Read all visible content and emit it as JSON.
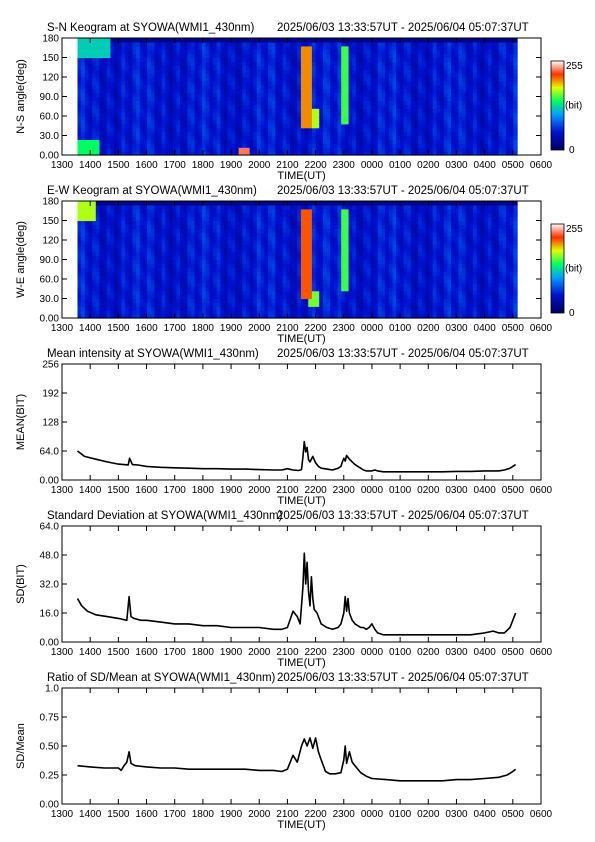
{
  "chart_data": [
    {
      "type": "heatmap",
      "title": "S-N Keogram at SYOWA(WMI1_430nm)",
      "time_range": "2025/06/03 13:33:57UT - 2025/06/04 05:07:37UT",
      "xlabel": "TIME(UT)",
      "ylabel": "N-S angle(deg)",
      "x_ticks": [
        "1300",
        "1400",
        "1500",
        "1600",
        "1700",
        "1800",
        "1900",
        "2000",
        "2100",
        "2200",
        "2300",
        "0000",
        "0100",
        "0200",
        "0300",
        "0400",
        "0500",
        "0600"
      ],
      "y_ticks": [
        "0.00",
        "30.0",
        "60.0",
        "90.0",
        "120",
        "150",
        "180"
      ],
      "ylim": [
        0,
        180
      ],
      "colorbar": {
        "min": "0",
        "max": "255",
        "unit": "(bit)"
      },
      "features": [
        {
          "x": [
            21.55,
            21.75
          ],
          "y": [
            40,
            170
          ],
          "level": 200
        },
        {
          "x": [
            21.75,
            22.05
          ],
          "y": [
            40,
            70
          ],
          "level": 170
        },
        {
          "x": [
            22.95,
            23.1
          ],
          "y": [
            50,
            170
          ],
          "level": 150
        },
        {
          "x": [
            19.3,
            19.6
          ],
          "y": [
            0,
            12
          ],
          "level": 230
        },
        {
          "x": [
            13.6,
            14.3
          ],
          "y": [
            0,
            25
          ],
          "level": 140
        },
        {
          "x": [
            13.6,
            14.6
          ],
          "y": [
            150,
            180
          ],
          "level": 120
        }
      ]
    },
    {
      "type": "heatmap",
      "title": "E-W Keogram at SYOWA(WMI1_430nm)",
      "time_range": "2025/06/03 13:33:57UT - 2025/06/04 05:07:37UT",
      "xlabel": "TIME(UT)",
      "ylabel": "W-E angle(deg)",
      "x_ticks": [
        "1300",
        "1400",
        "1500",
        "1600",
        "1700",
        "1800",
        "1900",
        "2000",
        "2100",
        "2200",
        "2300",
        "0000",
        "0100",
        "0200",
        "0300",
        "0400",
        "0500",
        "0600"
      ],
      "y_ticks": [
        "0.00",
        "30.0",
        "60.0",
        "90.0",
        "120",
        "150",
        "180"
      ],
      "ylim": [
        0,
        180
      ],
      "colorbar": {
        "min": "0",
        "max": "255",
        "unit": "(bit)"
      },
      "features": [
        {
          "x": [
            21.55,
            21.8
          ],
          "y": [
            30,
            170
          ],
          "level": 210
        },
        {
          "x": [
            21.8,
            22.1
          ],
          "y": [
            20,
            40
          ],
          "level": 160
        },
        {
          "x": [
            22.95,
            23.15
          ],
          "y": [
            40,
            170
          ],
          "level": 150
        },
        {
          "x": [
            13.6,
            14.2
          ],
          "y": [
            150,
            180
          ],
          "level": 170
        }
      ]
    },
    {
      "type": "line",
      "title": "Mean intensity at SYOWA(WMI1_430nm)",
      "time_range": "2025/06/03 13:33:57UT - 2025/06/04 05:07:37UT",
      "xlabel": "TIME(UT)",
      "ylabel": "MEAN(BIT)",
      "x_ticks": [
        "1300",
        "1400",
        "1500",
        "1600",
        "1700",
        "1800",
        "1900",
        "2000",
        "2100",
        "2200",
        "2300",
        "0000",
        "0100",
        "0200",
        "0300",
        "0400",
        "0500",
        "0600"
      ],
      "y_ticks": [
        "0.00",
        "64.0",
        "128",
        "192",
        "256"
      ],
      "ylim": [
        0,
        256
      ],
      "series": [
        {
          "x": [
            13.55,
            13.8,
            14.2,
            14.6,
            15.0,
            15.35,
            15.4,
            15.5,
            15.7,
            16.0,
            16.5,
            17.0,
            17.5,
            18.0,
            18.5,
            19.0,
            19.5,
            20.0,
            20.5,
            20.8,
            21.0,
            21.2,
            21.4,
            21.5,
            21.55,
            21.6,
            21.65,
            21.7,
            21.75,
            21.8,
            21.9,
            22.0,
            22.1,
            22.2,
            22.4,
            22.6,
            22.8,
            22.9,
            22.95,
            23.0,
            23.05,
            23.1,
            23.2,
            23.3,
            23.4,
            23.5,
            23.6,
            23.7,
            23.8,
            23.9,
            24.0,
            24.1,
            24.2,
            24.4,
            24.6,
            25.0,
            25.5,
            26.0,
            26.5,
            27.0,
            27.5,
            28.0,
            28.5,
            28.7,
            28.9,
            29.0,
            29.1
          ],
          "values": [
            64,
            52,
            46,
            40,
            35,
            33,
            48,
            34,
            33,
            30,
            28,
            27,
            26,
            25,
            25,
            24,
            24,
            23,
            22,
            22,
            25,
            22,
            21,
            23,
            50,
            85,
            62,
            72,
            45,
            40,
            52,
            38,
            30,
            26,
            24,
            22,
            26,
            30,
            40,
            48,
            42,
            54,
            46,
            40,
            34,
            30,
            26,
            22,
            20,
            20,
            20,
            22,
            20,
            18,
            18,
            18,
            18,
            18,
            18,
            19,
            19,
            20,
            20,
            22,
            26,
            30,
            34
          ]
        }
      ]
    },
    {
      "type": "line",
      "title": "Standard Deviation at SYOWA(WMI1_430nm)",
      "time_range": "2025/06/03 13:33:57UT - 2025/06/04 05:07:37UT",
      "xlabel": "TIME(UT)",
      "ylabel": "SD(BIT)",
      "x_ticks": [
        "1300",
        "1400",
        "1500",
        "1600",
        "1700",
        "1800",
        "1900",
        "2000",
        "2100",
        "2200",
        "2300",
        "0000",
        "0100",
        "0200",
        "0300",
        "0400",
        "0500",
        "0600"
      ],
      "y_ticks": [
        "0.00",
        "16.0",
        "32.0",
        "48.0",
        "64.0"
      ],
      "ylim": [
        0,
        64
      ],
      "series": [
        {
          "x": [
            13.55,
            13.7,
            13.9,
            14.2,
            14.6,
            15.0,
            15.3,
            15.38,
            15.45,
            15.55,
            15.8,
            16.0,
            16.5,
            17.0,
            17.5,
            18.0,
            18.5,
            19.0,
            19.5,
            20.0,
            20.5,
            20.8,
            21.0,
            21.2,
            21.35,
            21.45,
            21.55,
            21.6,
            21.65,
            21.7,
            21.75,
            21.8,
            21.85,
            21.9,
            21.95,
            22.05,
            22.2,
            22.4,
            22.6,
            22.8,
            22.9,
            23.0,
            23.05,
            23.1,
            23.15,
            23.2,
            23.3,
            23.4,
            23.5,
            23.6,
            23.7,
            23.8,
            23.9,
            24.0,
            24.1,
            24.2,
            24.4,
            25.0,
            25.5,
            26.0,
            26.5,
            27.0,
            27.5,
            28.0,
            28.3,
            28.5,
            28.7,
            28.9,
            29.0,
            29.1
          ],
          "values": [
            24,
            20,
            17,
            15,
            14,
            13,
            12,
            25,
            14,
            13,
            12,
            12,
            11,
            10,
            10,
            9,
            9,
            8,
            8,
            8,
            7,
            7,
            8,
            17,
            14,
            10,
            30,
            49,
            32,
            44,
            28,
            20,
            36,
            24,
            18,
            16,
            10,
            8,
            7,
            8,
            10,
            16,
            25,
            17,
            24,
            16,
            12,
            10,
            9,
            8,
            8,
            7,
            8,
            10,
            7,
            5,
            4,
            4,
            4,
            4,
            4,
            4,
            4,
            5,
            6,
            5,
            5,
            8,
            12,
            16
          ]
        }
      ]
    },
    {
      "type": "line",
      "title": "Ratio of SD/Mean at SYOWA(WMI1_430nm)",
      "time_range": "2025/06/03 13:33:57UT - 2025/06/04 05:07:37UT",
      "xlabel": "TIME(UT)",
      "ylabel": "SD/Mean",
      "x_ticks": [
        "1300",
        "1400",
        "1500",
        "1600",
        "1700",
        "1800",
        "1900",
        "2000",
        "2100",
        "2200",
        "2300",
        "0000",
        "0100",
        "0200",
        "0300",
        "0400",
        "0500",
        "0600"
      ],
      "y_ticks": [
        "0.00",
        "0.25",
        "0.50",
        "0.75",
        "1.0"
      ],
      "ylim": [
        0,
        1
      ],
      "series": [
        {
          "x": [
            13.55,
            14.0,
            14.5,
            15.0,
            15.1,
            15.2,
            15.3,
            15.38,
            15.45,
            15.6,
            16.0,
            16.5,
            17.0,
            17.5,
            18.0,
            18.5,
            19.0,
            19.5,
            20.0,
            20.5,
            20.8,
            21.0,
            21.2,
            21.35,
            21.5,
            21.6,
            21.7,
            21.8,
            21.9,
            22.0,
            22.1,
            22.2,
            22.35,
            22.5,
            22.7,
            22.9,
            23.0,
            23.05,
            23.1,
            23.2,
            23.3,
            23.4,
            23.5,
            23.6,
            23.8,
            24.0,
            24.5,
            25.0,
            25.5,
            26.0,
            26.5,
            27.0,
            27.5,
            28.0,
            28.5,
            28.8,
            29.0,
            29.1
          ],
          "values": [
            0.33,
            0.32,
            0.31,
            0.31,
            0.29,
            0.33,
            0.36,
            0.45,
            0.35,
            0.33,
            0.32,
            0.31,
            0.31,
            0.3,
            0.3,
            0.3,
            0.3,
            0.3,
            0.29,
            0.29,
            0.28,
            0.3,
            0.42,
            0.36,
            0.5,
            0.56,
            0.5,
            0.57,
            0.48,
            0.57,
            0.45,
            0.38,
            0.28,
            0.26,
            0.26,
            0.27,
            0.38,
            0.5,
            0.35,
            0.45,
            0.36,
            0.33,
            0.3,
            0.27,
            0.24,
            0.22,
            0.21,
            0.2,
            0.2,
            0.2,
            0.2,
            0.21,
            0.21,
            0.22,
            0.23,
            0.25,
            0.28,
            0.3
          ]
        }
      ]
    }
  ]
}
